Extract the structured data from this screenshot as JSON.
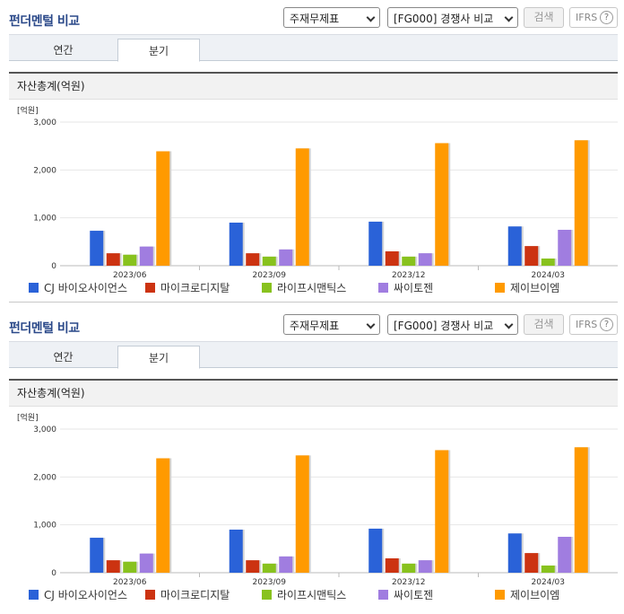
{
  "panels": [
    {
      "title": "펀더멘털 비교",
      "select_statement": "주재무제표",
      "select_group": "[FG000] 경쟁사 비교",
      "search_label": "검색",
      "ifrs_label": "IFRS",
      "ifrs_help": "?",
      "tabs": [
        {
          "label": "연간"
        },
        {
          "label": "분기"
        }
      ],
      "active_tab": 1,
      "section_title": "자산총계(억원)"
    },
    {
      "title": "펀더멘털 비교",
      "select_statement": "주재무제표",
      "select_group": "[FG000] 경쟁사 비교",
      "search_label": "검색",
      "ifrs_label": "IFRS",
      "ifrs_help": "?",
      "tabs": [
        {
          "label": "연간"
        },
        {
          "label": "분기"
        }
      ],
      "active_tab": 1,
      "section_title": "자산총계(억원)"
    }
  ],
  "chart_data": [
    {
      "type": "bar",
      "unit_label": "[억원]",
      "categories": [
        "2023/06",
        "2023/09",
        "2023/12",
        "2024/03"
      ],
      "ylim": [
        0,
        3000
      ],
      "yticks": [
        0,
        1000,
        2000,
        3000
      ],
      "ytick_labels": [
        "0",
        "1,000",
        "2,000",
        "3,000"
      ],
      "grid": true,
      "legend_position": "bottom",
      "series": [
        {
          "name": "CJ 바이오사이언스",
          "color": "#2a62d8",
          "values": [
            730,
            900,
            920,
            820
          ]
        },
        {
          "name": "마이크로디지탈",
          "color": "#cc3311",
          "values": [
            260,
            260,
            300,
            410
          ]
        },
        {
          "name": "라이프시맨틱스",
          "color": "#88c21e",
          "values": [
            230,
            190,
            190,
            150
          ]
        },
        {
          "name": "싸이토젠",
          "color": "#a07de0",
          "values": [
            400,
            340,
            260,
            750
          ]
        },
        {
          "name": "제이브이엠",
          "color": "#ff9a00",
          "values": [
            2390,
            2450,
            2560,
            2620
          ]
        }
      ]
    },
    {
      "type": "bar",
      "unit_label": "[억원]",
      "categories": [
        "2023/06",
        "2023/09",
        "2023/12",
        "2024/03"
      ],
      "ylim": [
        0,
        3000
      ],
      "yticks": [
        0,
        1000,
        2000,
        3000
      ],
      "ytick_labels": [
        "0",
        "1,000",
        "2,000",
        "3,000"
      ],
      "grid": true,
      "legend_position": "bottom",
      "series": [
        {
          "name": "CJ 바이오사이언스",
          "color": "#2a62d8",
          "values": [
            730,
            900,
            920,
            820
          ]
        },
        {
          "name": "마이크로디지탈",
          "color": "#cc3311",
          "values": [
            260,
            260,
            300,
            410
          ]
        },
        {
          "name": "라이프시맨틱스",
          "color": "#88c21e",
          "values": [
            230,
            190,
            190,
            150
          ]
        },
        {
          "name": "싸이토젠",
          "color": "#a07de0",
          "values": [
            400,
            340,
            260,
            750
          ]
        },
        {
          "name": "제이브이엠",
          "color": "#ff9a00",
          "values": [
            2390,
            2450,
            2560,
            2620
          ]
        }
      ]
    }
  ]
}
